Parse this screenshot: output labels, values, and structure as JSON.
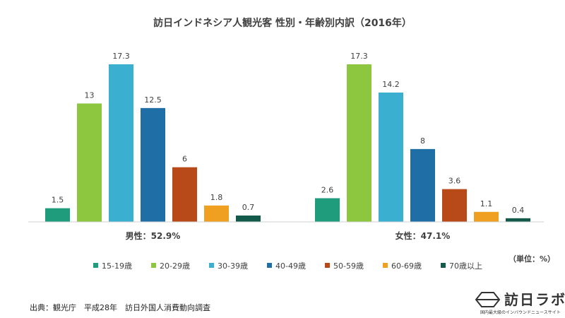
{
  "chart_data": {
    "type": "bar",
    "title": "訪日インドネシア人観光客 性別・年齢別内訳（2016年）",
    "unit_label": "（単位：%）",
    "groups": [
      "男性：52.9%",
      "女性：47.1%"
    ],
    "series": [
      {
        "name": "15-19歳",
        "color": "#1e9c7c",
        "values": [
          1.5,
          2.6
        ]
      },
      {
        "name": "20-29歳",
        "color": "#8dc63f",
        "values": [
          13,
          17.3
        ]
      },
      {
        "name": "30-39歳",
        "color": "#3aafd0",
        "values": [
          17.3,
          14.2
        ]
      },
      {
        "name": "40-49歳",
        "color": "#1f6ea6",
        "values": [
          12.5,
          8
        ]
      },
      {
        "name": "50-59歳",
        "color": "#b84a1a",
        "values": [
          6,
          3.6
        ]
      },
      {
        "name": "60-69歳",
        "color": "#f0a020",
        "values": [
          1.8,
          1.1
        ]
      },
      {
        "name": "70歳以上",
        "color": "#145a4a",
        "values": [
          0.7,
          0.4
        ]
      }
    ],
    "value_labels": [
      [
        "1.5",
        "13",
        "17.3",
        "12.5",
        "6",
        "1.8",
        "0.7"
      ],
      [
        "2.6",
        "17.3",
        "14.2",
        "8",
        "3.6",
        "1.1",
        "0.4"
      ]
    ],
    "ylim": [
      0,
      17.3
    ],
    "grid": false,
    "legend_position": "bottom"
  },
  "source": "出典：観光庁　平成28年　訪日外国人消費動向調査",
  "logo": {
    "name": "訪日ラボ",
    "tagline": "国内最大級のインバウンドニュースサイト"
  }
}
